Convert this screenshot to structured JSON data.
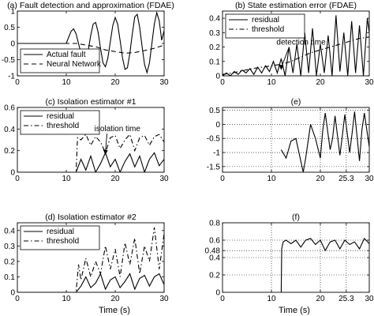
{
  "figure": {
    "xlabel_left": "Time (s)",
    "xlabel_right": "Time (s)"
  },
  "chart_data": [
    {
      "id": "a",
      "type": "line",
      "title": "(a) Fault detection and approximation (FDAE)",
      "xlim": [
        0,
        30
      ],
      "ylim": [
        -1,
        1
      ],
      "xticks": [
        0,
        10,
        20,
        30
      ],
      "yticks": [
        -1,
        -0.5,
        0,
        0.5,
        1
      ],
      "ytick_labels": [
        "-1",
        "-0.5",
        "0",
        "0.5",
        "1"
      ],
      "grid": false,
      "legend": "bottom-left",
      "series": [
        {
          "name": "Actual fault",
          "style": "solid",
          "x": [
            0,
            10,
            10.5,
            11,
            11.5,
            12,
            12.5,
            13,
            13.5,
            14,
            14.5,
            15,
            15.5,
            16,
            16.5,
            17,
            17.5,
            18,
            18.5,
            19,
            19.5,
            20,
            20.5,
            21,
            21.5,
            22,
            22.5,
            23,
            23.5,
            24,
            24.5,
            25,
            25.5,
            26,
            26.5,
            27,
            27.5,
            28,
            28.5,
            29,
            29.5,
            30
          ],
          "y": [
            0,
            0,
            0.2,
            0.38,
            0.45,
            0.3,
            0.0,
            -0.3,
            -0.5,
            -0.48,
            -0.2,
            0.25,
            0.6,
            0.65,
            0.35,
            -0.15,
            -0.6,
            -0.72,
            -0.45,
            0.05,
            0.55,
            0.8,
            0.6,
            0.1,
            -0.45,
            -0.8,
            -0.75,
            -0.3,
            0.3,
            0.82,
            0.9,
            0.5,
            -0.1,
            -0.65,
            -0.9,
            -0.6,
            0.0,
            0.6,
            0.95,
            0.7,
            0.1,
            0.4
          ]
        },
        {
          "name": "Neural Network",
          "style": "dashed",
          "x": [
            0,
            12,
            14,
            16,
            18,
            20,
            22,
            24,
            26,
            28,
            30
          ],
          "y": [
            0,
            0,
            -0.05,
            -0.1,
            -0.2,
            -0.25,
            -0.3,
            -0.28,
            -0.22,
            -0.15,
            -0.05
          ]
        }
      ]
    },
    {
      "id": "b",
      "type": "line",
      "title": "(b) State estimation error (FDAE)",
      "xlim": [
        0,
        30
      ],
      "ylim": [
        0,
        0.45
      ],
      "xticks": [
        0,
        10,
        20,
        30
      ],
      "yticks": [
        0,
        0.1,
        0.2,
        0.3,
        0.4
      ],
      "ytick_labels": [
        "0",
        "0.1",
        "0.2",
        "0.3",
        "0.4"
      ],
      "grid": false,
      "legend": "top-left",
      "annotation": "detection time",
      "annotation_at": [
        12,
        0.04
      ],
      "series": [
        {
          "name": "residual",
          "style": "solid",
          "x": [
            0,
            0.8,
            1.6,
            2.4,
            3.2,
            4.0,
            4.8,
            5.6,
            6.4,
            7.2,
            8.0,
            8.8,
            9.6,
            10.4,
            11.2,
            12.0,
            12.8,
            13.6,
            14.4,
            15.2,
            16.0,
            16.8,
            17.6,
            18.4,
            19.2,
            20.0,
            20.8,
            21.6,
            22.4,
            23.2,
            24.0,
            24.8,
            25.6,
            26.4,
            27.2,
            28.0,
            28.8,
            29.6,
            30
          ],
          "y": [
            0,
            0.02,
            0.0,
            0.03,
            0.01,
            0.04,
            0.02,
            0.05,
            0.01,
            0.06,
            0.02,
            0.07,
            0.03,
            0.1,
            0.02,
            0.12,
            0.0,
            0.2,
            0.02,
            0.22,
            0.0,
            0.3,
            0.02,
            0.33,
            0.0,
            0.22,
            0.02,
            0.28,
            0.0,
            0.42,
            0.03,
            0.3,
            0.0,
            0.38,
            0.02,
            0.35,
            0.0,
            0.4,
            0.3
          ]
        },
        {
          "name": "threshold",
          "style": "dashdot",
          "x": [
            0,
            2,
            4,
            6,
            8,
            10,
            12,
            14,
            16,
            18,
            20,
            22,
            24,
            26,
            28,
            30
          ],
          "y": [
            0.01,
            0.02,
            0.035,
            0.05,
            0.06,
            0.07,
            0.08,
            0.1,
            0.13,
            0.16,
            0.18,
            0.2,
            0.22,
            0.24,
            0.26,
            0.27
          ]
        }
      ]
    },
    {
      "id": "c",
      "type": "line",
      "title": "(c) Isolation estimator #1",
      "xlim": [
        0,
        30
      ],
      "ylim": [
        0,
        0.6
      ],
      "xticks": [
        0,
        10,
        20,
        30
      ],
      "yticks": [
        0,
        0.2,
        0.4,
        0.6
      ],
      "ytick_labels": [
        "0",
        "0.2",
        "0.4",
        "0.6"
      ],
      "grid": false,
      "legend": "top-left",
      "annotation": "isolation time",
      "annotation_at": [
        18,
        0.16
      ],
      "series": [
        {
          "name": "residual",
          "style": "solid",
          "x": [
            0,
            10,
            12,
            13,
            14,
            15,
            16,
            17,
            18,
            19,
            20,
            21,
            22,
            23,
            24,
            25,
            26,
            27,
            28,
            29,
            30
          ],
          "y": [
            0,
            0,
            0,
            0.12,
            0.02,
            0.15,
            0.0,
            0.08,
            0.18,
            0.05,
            0.12,
            0.0,
            0.1,
            0.17,
            0.05,
            0.15,
            0.0,
            0.12,
            0.18,
            0.06,
            0.12
          ]
        },
        {
          "name": "threshold",
          "style": "dashdot",
          "x": [
            0,
            12,
            12.3,
            13,
            14,
            15,
            16,
            17,
            18,
            19,
            20,
            21,
            22,
            23,
            24,
            25,
            26,
            27,
            28,
            29,
            30
          ],
          "y": [
            0,
            0,
            0.32,
            0.3,
            0.35,
            0.25,
            0.33,
            0.28,
            0.18,
            0.32,
            0.34,
            0.22,
            0.3,
            0.35,
            0.2,
            0.32,
            0.34,
            0.25,
            0.33,
            0.35,
            0.28
          ]
        }
      ]
    },
    {
      "id": "e",
      "type": "line",
      "title": "(e)",
      "xlim": [
        0,
        30
      ],
      "ylim": [
        -1.7,
        0.6
      ],
      "xticks": [
        0,
        10,
        20,
        25.3,
        30
      ],
      "xtick_labels": [
        "0",
        "10",
        "20",
        "25.3",
        "30"
      ],
      "yticks": [
        -1.5,
        -1,
        -0.5,
        0,
        0.5
      ],
      "ytick_labels": [
        "-1.5",
        "-1",
        "-0.5",
        "0",
        "0.5"
      ],
      "grid": true,
      "legend": "none",
      "series": [
        {
          "name": "",
          "style": "solid",
          "x": [
            12,
            13,
            14,
            15,
            16,
            16.5,
            17,
            18,
            19,
            20,
            20.5,
            21,
            22,
            22.5,
            23,
            24,
            24.5,
            25,
            26,
            26.5,
            27,
            28,
            28.5,
            29,
            30
          ],
          "y": [
            -0.9,
            -1.2,
            -0.6,
            -0.5,
            -1.3,
            -1.7,
            -1.2,
            0.0,
            -0.5,
            -1.2,
            -0.2,
            0.4,
            -0.9,
            -0.5,
            0.3,
            -1.1,
            -0.4,
            0.35,
            -1.0,
            -0.3,
            0.45,
            -1.3,
            -0.2,
            0.4,
            -0.8
          ]
        }
      ]
    },
    {
      "id": "d",
      "type": "line",
      "title": "(d) Isolation estimator #2",
      "xlim": [
        0,
        30
      ],
      "ylim": [
        0,
        0.45
      ],
      "xticks": [
        0,
        10,
        20,
        30
      ],
      "yticks": [
        0,
        0.1,
        0.2,
        0.3,
        0.4
      ],
      "ytick_labels": [
        "0",
        "0.1",
        "0.2",
        "0.3",
        "0.4"
      ],
      "grid": false,
      "legend": "top-left",
      "series": [
        {
          "name": "residual",
          "style": "solid",
          "x": [
            0,
            12,
            13,
            14,
            15,
            16,
            17,
            18,
            19,
            20,
            21,
            22,
            23,
            24,
            25,
            26,
            27,
            28,
            29,
            30
          ],
          "y": [
            0,
            0,
            0.04,
            0.1,
            0.03,
            0.06,
            0.12,
            0.02,
            0.08,
            0.1,
            0.03,
            0.07,
            0.12,
            0.02,
            0.09,
            0.11,
            0.04,
            0.1,
            0.12,
            0.05
          ]
        },
        {
          "name": "threshold",
          "style": "dashdot",
          "x": [
            0,
            12,
            12.5,
            13,
            14,
            15,
            16,
            17,
            18,
            19,
            20,
            21,
            22,
            23,
            24,
            25,
            26,
            27,
            28,
            29,
            30
          ],
          "y": [
            0,
            0,
            0.18,
            0.08,
            0.22,
            0.1,
            0.2,
            0.12,
            0.3,
            0.15,
            0.28,
            0.1,
            0.32,
            0.18,
            0.35,
            0.12,
            0.3,
            0.2,
            0.42,
            0.15,
            0.38
          ]
        }
      ]
    },
    {
      "id": "f",
      "type": "line",
      "title": "(f)",
      "xlim": [
        0,
        30
      ],
      "ylim": [
        0,
        0.8
      ],
      "xticks": [
        0,
        10,
        20,
        25.3,
        30
      ],
      "xtick_labels": [
        "0",
        "10",
        "20",
        "25.3",
        "30"
      ],
      "yticks": [
        0,
        0.2,
        0.4,
        0.48,
        0.6,
        0.8
      ],
      "ytick_labels": [
        "0",
        "0.2",
        "0.4",
        "0.48",
        "0.6",
        "0.8"
      ],
      "grid": true,
      "legend": "none",
      "series": [
        {
          "name": "",
          "style": "solid",
          "x": [
            12,
            12.1,
            12.4,
            13,
            14,
            15,
            16,
            17,
            18,
            19,
            20,
            21,
            22,
            23,
            24,
            25,
            26,
            27,
            28,
            29,
            30
          ],
          "y": [
            0,
            0.5,
            0.58,
            0.6,
            0.56,
            0.6,
            0.52,
            0.6,
            0.62,
            0.55,
            0.6,
            0.48,
            0.58,
            0.6,
            0.5,
            0.6,
            0.55,
            0.58,
            0.5,
            0.62,
            0.56
          ]
        }
      ]
    }
  ]
}
